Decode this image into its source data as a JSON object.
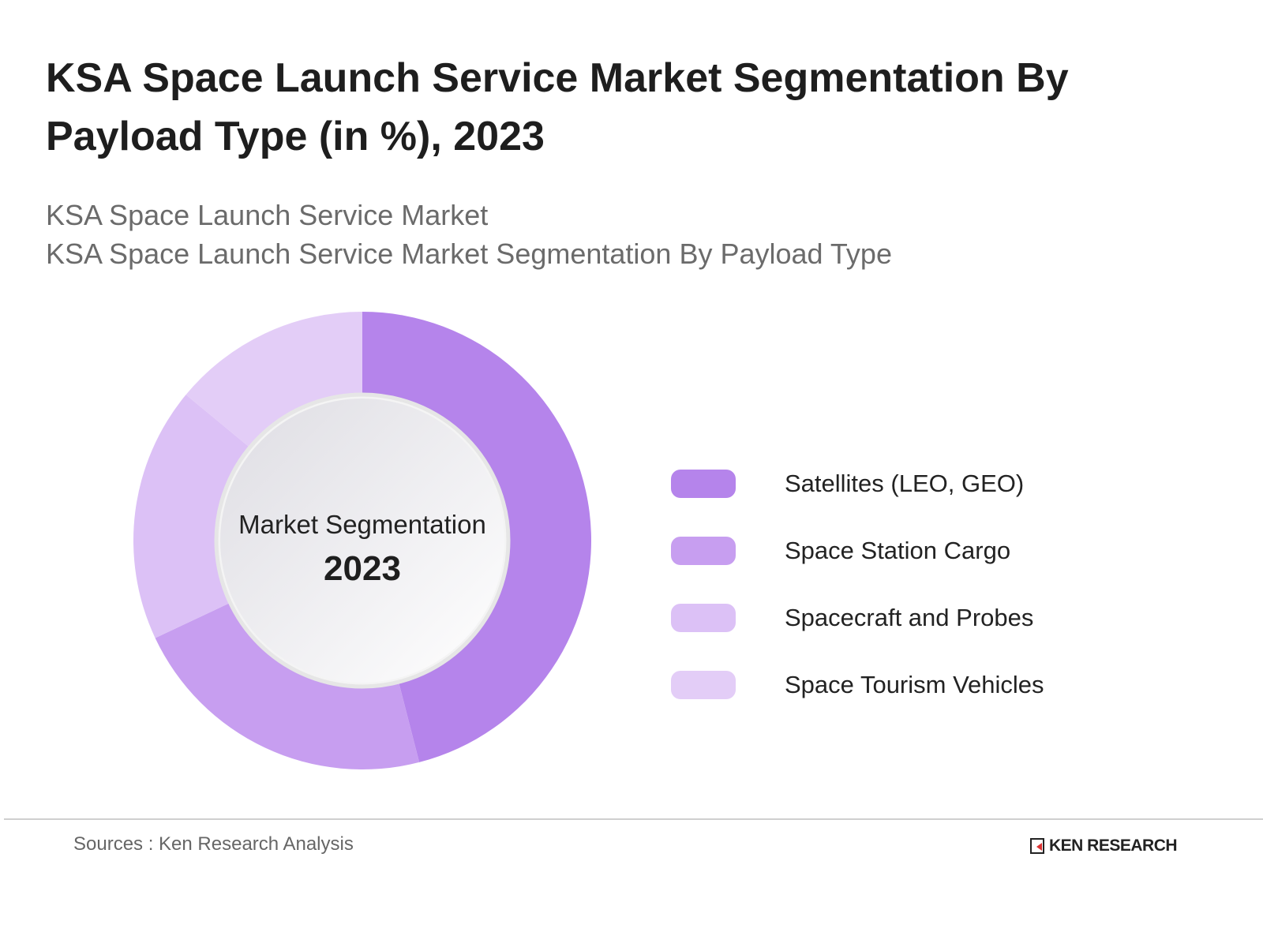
{
  "title": "KSA Space Launch Service Market Segmentation By Payload Type (in %), 2023",
  "subtitle1": "KSA Space Launch Service Market",
  "subtitle2": "KSA Space Launch Service Market Segmentation By Payload Type",
  "chart_data": {
    "type": "pie",
    "variant": "donut",
    "center_label": "Market Segmentation",
    "center_year": "2023",
    "categories": [
      "Satellites (LEO, GEO)",
      "Space Station Cargo",
      "Spacecraft and Probes",
      "Space Tourism Vehicles"
    ],
    "values": [
      46,
      22,
      18,
      14
    ],
    "colors": [
      "#b584eb",
      "#c79ef0",
      "#dcc1f6",
      "#e3cdf7"
    ],
    "legend": "right"
  },
  "footer": {
    "source": "Sources : Ken Research Analysis",
    "logo_text": "KEN RESEARCH"
  }
}
